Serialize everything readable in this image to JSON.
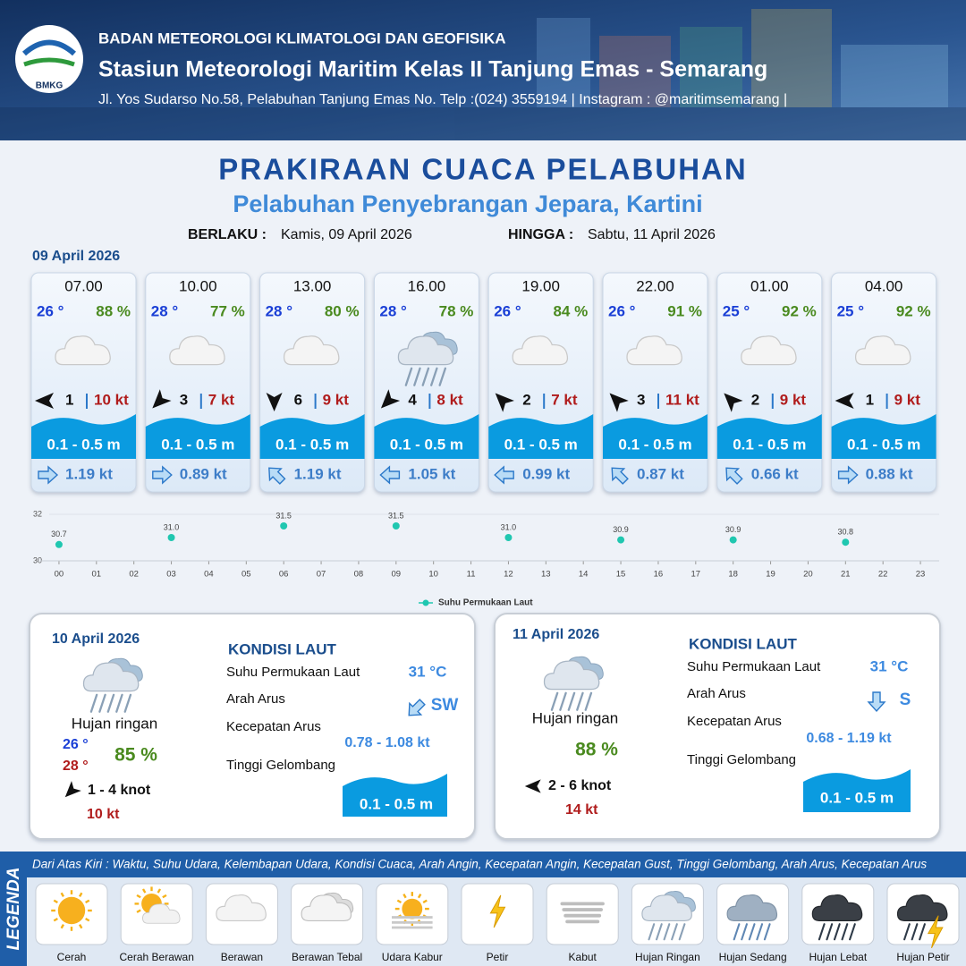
{
  "header": {
    "logo": "BMKG",
    "org": "BADAN METEOROLOGI KLIMATOLOGI DAN GEOFISIKA",
    "station": "Stasiun Meteorologi Maritim Kelas II Tanjung Emas - Semarang",
    "address": "Jl. Yos Sudarso No.58, Pelabuhan Tanjung Emas No. Telp :(024) 3559194 | Instagram : @maritimsemarang |"
  },
  "title": "PRAKIRAAN CUACA PELABUHAN",
  "subtitle": "Pelabuhan Penyebrangan Jepara, Kartini",
  "validity": {
    "from_label": "BERLAKU :",
    "from": "Kamis, 09 April 2026",
    "to_label": "HINGGA :",
    "to": "Sabtu, 11 April 2026"
  },
  "day1_date": "09 April 2026",
  "cards": [
    {
      "time": "07.00",
      "temp": "26 °",
      "humidity": "88 %",
      "wind_speed": 1,
      "gust": "10 kt",
      "wave": "0.1 - 0.5 m",
      "current": "1.19 kt"
    },
    {
      "time": "10.00",
      "temp": "28 °",
      "humidity": "77 %",
      "wind_speed": 3,
      "gust": "7 kt",
      "wave": "0.1 - 0.5 m",
      "current": "0.89 kt"
    },
    {
      "time": "13.00",
      "temp": "28 °",
      "humidity": "80 %",
      "wind_speed": 6,
      "gust": "9 kt",
      "wave": "0.1 - 0.5 m",
      "current": "1.19 kt"
    },
    {
      "time": "16.00",
      "temp": "28 °",
      "humidity": "78 %",
      "wind_speed": 4,
      "gust": "8 kt",
      "wave": "0.1 - 0.5 m",
      "current": "1.05 kt"
    },
    {
      "time": "19.00",
      "temp": "26 °",
      "humidity": "84 %",
      "wind_speed": 2,
      "gust": "7 kt",
      "wave": "0.1 - 0.5 m",
      "current": "0.99 kt"
    },
    {
      "time": "22.00",
      "temp": "26 °",
      "humidity": "91 %",
      "wind_speed": 3,
      "gust": "11 kt",
      "wave": "0.1 - 0.5 m",
      "current": "0.87 kt"
    },
    {
      "time": "01.00",
      "temp": "25 °",
      "humidity": "92 %",
      "wind_speed": 2,
      "gust": "9 kt",
      "wave": "0.1 - 0.5 m",
      "current": "0.66 kt"
    },
    {
      "time": "04.00",
      "temp": "25 °",
      "humidity": "92 %",
      "wind_speed": 1,
      "gust": "9 kt",
      "wave": "0.1 - 0.5 m",
      "current": "0.88 kt"
    }
  ],
  "chart_data": {
    "type": "scatter",
    "x": [
      0,
      3,
      6,
      9,
      12,
      15,
      18,
      21
    ],
    "series": [
      {
        "name": "Suhu Permukaan Laut",
        "color": "#20c7b0",
        "values": [
          30.7,
          31.0,
          31.5,
          31.5,
          31.0,
          30.9,
          30.9,
          30.8
        ],
        "value_labels": [
          "30.7",
          "31.0",
          "31.5",
          "31.5",
          "31.0",
          "30.9",
          "30.9",
          "30.8"
        ]
      }
    ],
    "xlim": [
      -0.5,
      23.5
    ],
    "xticks": [
      {
        "value": 0,
        "label": "00"
      },
      {
        "value": 1,
        "label": "01"
      },
      {
        "value": 2,
        "label": "02"
      },
      {
        "value": 3,
        "label": "03"
      },
      {
        "value": 4,
        "label": "04"
      },
      {
        "value": 5,
        "label": "05"
      },
      {
        "value": 6,
        "label": "06"
      },
      {
        "value": 7,
        "label": "07"
      },
      {
        "value": 8,
        "label": "08"
      },
      {
        "value": 9,
        "label": "09"
      },
      10,
      11,
      12,
      13,
      14,
      15,
      16,
      17,
      18,
      19,
      20,
      21,
      22,
      23
    ],
    "ylim": [
      30,
      32
    ],
    "yticks": [
      30,
      32
    ],
    "grid": true,
    "legend": "bottom"
  },
  "days": [
    {
      "date": "10 April 2026",
      "condition": "Hujan ringan",
      "temp_min": "26 °",
      "temp_max": "28 °",
      "humidity": "85 %",
      "wind": "1  - 4 knot",
      "gust": "10 kt",
      "sea_title": "KONDISI LAUT",
      "sst_label": "Suhu Permukaan Laut",
      "sst": "31 °C",
      "current_dir_label": "Arah Arus",
      "current_dir": "SW",
      "current_speed_label": "Kecepatan Arus",
      "current_speed": "0.78 - 1.08 kt",
      "wave_label": "Tinggi Gelombang",
      "wave": "0.1 - 0.5 m"
    },
    {
      "date": "11 April 2026",
      "condition": "Hujan ringan",
      "humidity": "88 %",
      "wind": "2  - 6 knot",
      "gust": "14 kt",
      "sea_title": "KONDISI LAUT",
      "sst_label": "Suhu Permukaan Laut",
      "sst": "31 °C",
      "current_dir_label": "Arah Arus",
      "current_dir": "S",
      "current_speed_label": "Kecepatan Arus",
      "current_speed": "0.68 - 1.19 kt",
      "wave_label": "Tinggi Gelombang",
      "wave": "0.1 - 0.5 m"
    }
  ],
  "legend": {
    "title": "LEGENDA",
    "description": "Dari Atas Kiri : Waktu, Suhu Udara, Kelembapan Udara, Kondisi Cuaca, Arah Angin, Kecepatan Angin, Kecepatan Gust, Tinggi Gelombang, Arah Arus, Kecepatan Arus",
    "items": [
      "Cerah",
      "Cerah Berawan",
      "Berawan",
      "Berawan Tebal",
      "Udara Kabur",
      "Petir",
      "Kabut",
      "Hujan Ringan",
      "Hujan Sedang",
      "Hujan Lebat",
      "Hujan Petir"
    ]
  }
}
